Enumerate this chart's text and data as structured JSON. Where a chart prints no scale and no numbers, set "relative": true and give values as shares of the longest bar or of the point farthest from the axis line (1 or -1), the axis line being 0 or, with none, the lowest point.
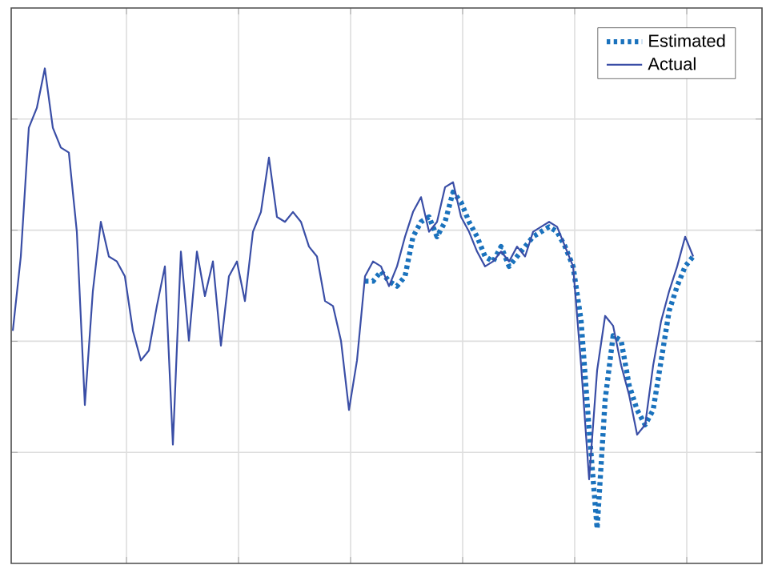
{
  "chart_data": {
    "type": "line",
    "relative": true,
    "grid": true,
    "legend": "top right",
    "marker": "none",
    "categories": [
      null,
      null,
      null,
      null,
      null,
      null,
      null,
      null,
      null,
      null,
      null,
      null,
      null,
      null,
      null,
      null,
      null,
      null,
      null,
      null,
      null,
      null,
      null,
      null,
      null,
      null,
      null,
      null,
      null,
      null,
      null,
      null,
      null,
      null,
      null,
      null,
      null,
      null,
      null,
      null,
      null,
      null,
      null,
      null,
      null,
      null,
      null,
      null,
      null,
      null,
      null,
      null,
      null,
      null,
      null,
      null,
      null,
      null,
      null,
      null,
      null,
      null,
      null,
      null,
      null,
      null,
      null,
      null,
      null,
      null,
      null,
      null,
      null,
      null,
      null,
      null,
      null,
      null,
      null,
      null,
      null,
      null,
      null,
      null,
      null,
      null
    ],
    "series": [
      {
        "name": "Estimated",
        "color": "#1a72bd",
        "line_style": "dotted",
        "values": [
          null,
          null,
          null,
          null,
          null,
          null,
          null,
          null,
          null,
          null,
          null,
          null,
          null,
          null,
          null,
          null,
          null,
          null,
          null,
          null,
          null,
          null,
          null,
          null,
          null,
          null,
          null,
          null,
          null,
          null,
          null,
          null,
          null,
          null,
          null,
          null,
          null,
          null,
          null,
          null,
          null,
          null,
          null,
          null,
          0.57,
          0.57,
          0.59,
          0.57,
          0.56,
          0.58,
          0.66,
          0.69,
          0.7,
          0.66,
          0.69,
          0.75,
          0.73,
          0.69,
          0.66,
          0.62,
          0.61,
          0.64,
          0.6,
          0.62,
          0.64,
          0.66,
          0.67,
          0.68,
          0.67,
          0.64,
          0.6,
          0.49,
          0.27,
          0.07,
          0.33,
          0.46,
          0.45,
          0.36,
          0.31,
          0.28,
          0.31,
          0.41,
          0.51,
          0.56,
          0.6,
          0.62
        ]
      },
      {
        "name": "Actual",
        "color": "#3a4ea6",
        "line_style": "solid",
        "values": [
          0.47,
          0.62,
          0.88,
          0.92,
          1.0,
          0.88,
          0.84,
          0.83,
          0.67,
          0.32,
          0.55,
          0.69,
          0.62,
          0.61,
          0.58,
          0.47,
          0.41,
          0.43,
          0.52,
          0.6,
          0.24,
          0.63,
          0.45,
          0.63,
          0.54,
          0.61,
          0.44,
          0.58,
          0.61,
          0.53,
          0.67,
          0.71,
          0.82,
          0.7,
          0.69,
          0.71,
          0.69,
          0.64,
          0.62,
          0.53,
          0.52,
          0.45,
          0.31,
          0.41,
          0.58,
          0.61,
          0.6,
          0.56,
          0.6,
          0.66,
          0.71,
          0.74,
          0.67,
          0.69,
          0.76,
          0.77,
          0.7,
          0.67,
          0.63,
          0.6,
          0.61,
          0.63,
          0.61,
          0.64,
          0.62,
          0.67,
          0.68,
          0.69,
          0.68,
          0.64,
          0.6,
          0.4,
          0.17,
          0.39,
          0.5,
          0.48,
          0.4,
          0.34,
          0.26,
          0.28,
          0.4,
          0.49,
          0.55,
          0.6,
          0.66,
          0.62
        ]
      }
    ]
  }
}
